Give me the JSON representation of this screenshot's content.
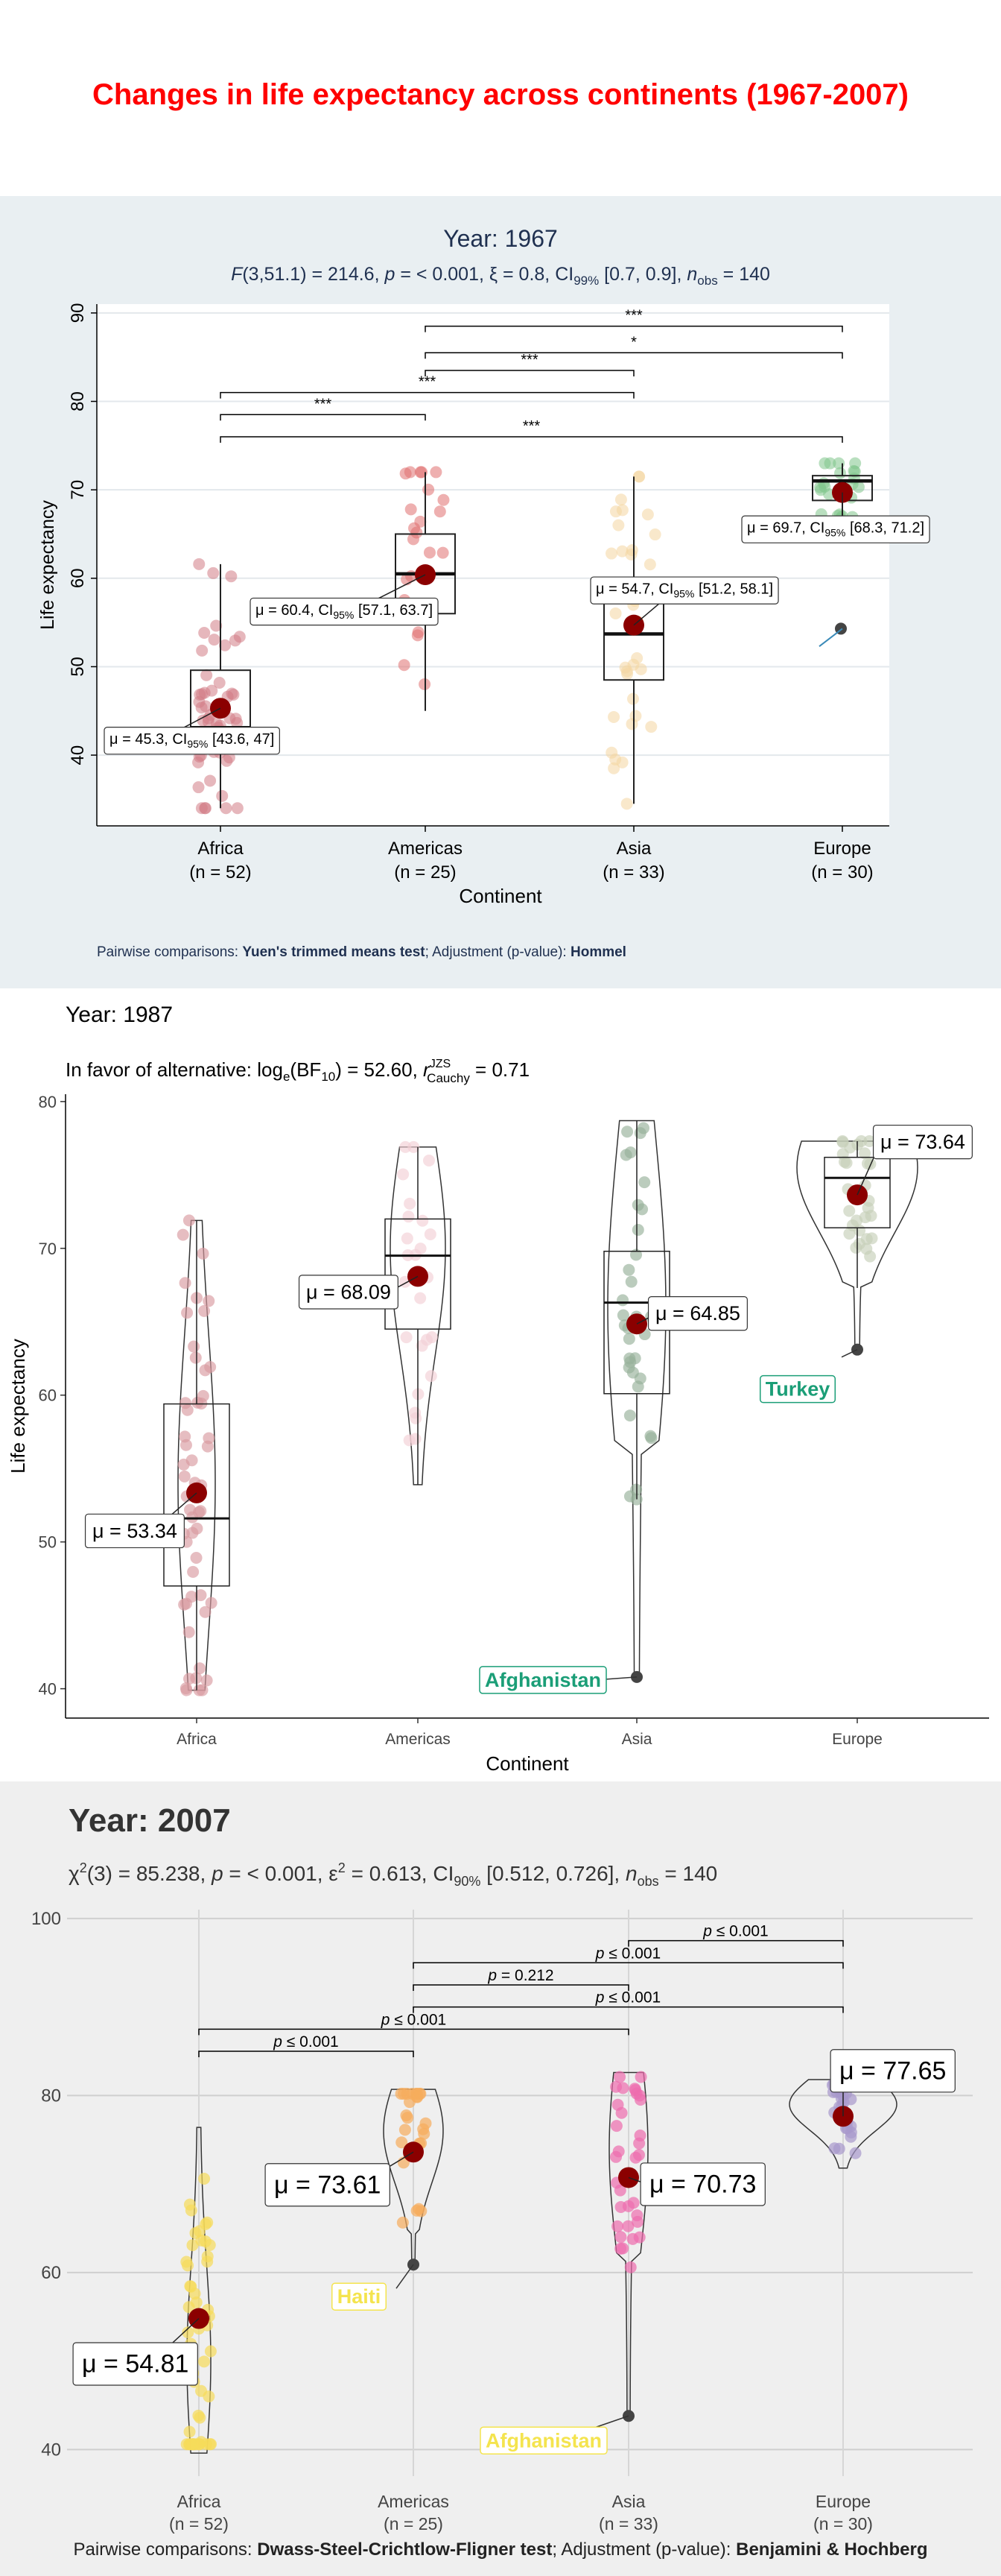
{
  "main_title": "Changes in life expectancy across continents (1967-2007)",
  "colors": {
    "title": "#ff0000",
    "panel1_bg": "#e9eff2",
    "panel3_bg": "#efefef",
    "mean_point": "#8b0000",
    "outlier_label": "#1b9e77",
    "outlier_label_2007": "#f4e44e",
    "africa_1967": "#d17c85",
    "americas_1967": "#e07070",
    "asia_1967": "#f4d6a0",
    "europe_1967": "#7fc58a",
    "africa_1987": "#d99aa0",
    "americas_1987": "#f2cfd6",
    "asia_1987": "#97b19a",
    "europe_1987": "#c6cfb9",
    "africa_2007": "#f6dc5a",
    "americas_2007": "#f6ac5c",
    "asia_2007": "#ee6cae",
    "europe_2007": "#a899cc"
  },
  "panels": [
    {
      "title": "Year: 1967",
      "subtitle": "F(3,51.1) = 214.6, p = < 0.001, ξ = 0.8, CI99% [0.7, 0.9], nobs = 140",
      "caption": "Pairwise comparisons: Yuen's trimmed means test; Adjustment (p-value): Hommel",
      "caption_parts": {
        "pre": "Pairwise comparisons: ",
        "test": "Yuen's trimmed means test",
        "mid": "; Adjustment (p-value): ",
        "adj": "Hommel"
      },
      "ylabel": "Life expectancy",
      "xlabel": "Continent",
      "ylim": [
        32,
        91
      ],
      "yticks": [
        40,
        50,
        60,
        70,
        80,
        90
      ],
      "groups": [
        {
          "name": "Africa",
          "n_label": "(n = 52)",
          "q1": 41.4,
          "median": 43.1,
          "q3": 49.6,
          "whisker_low": 34,
          "whisker_high": 61.6,
          "mean": 45.3,
          "mean_label": "μ = 45.3, CI95% [43.6, 47]"
        },
        {
          "name": "Americas",
          "n_label": "(n = 25)",
          "q1": 56,
          "median": 60.5,
          "q3": 65,
          "whisker_low": 45,
          "whisker_high": 72,
          "mean": 60.4,
          "mean_label": "μ = 60.4, CI95% [57.1, 63.7]"
        },
        {
          "name": "Asia",
          "n_label": "(n = 33)",
          "q1": 48.5,
          "median": 53.7,
          "q3": 60,
          "whisker_low": 34.5,
          "whisker_high": 71.5,
          "mean": 54.7,
          "mean_label": "μ = 54.7, CI95% [51.2, 58.1]"
        },
        {
          "name": "Europe",
          "n_label": "(n = 30)",
          "q1": 68.8,
          "median": 71,
          "q3": 71.6,
          "whisker_low": 65.5,
          "whisker_high": 73,
          "mean": 69.7,
          "mean_label": "μ = 69.7, CI95% [68.3, 71.2]",
          "outlier": 54.3
        }
      ],
      "comparisons": [
        {
          "from": 2,
          "to": 4,
          "y": 88.5,
          "label": "***"
        },
        {
          "from": 2,
          "to": 4,
          "y": 85.5,
          "label": "*"
        },
        {
          "from": 2,
          "to": 3,
          "y": 83.5,
          "label": "***"
        },
        {
          "from": 1,
          "to": 3,
          "y": 81,
          "label": "***"
        },
        {
          "from": 1,
          "to": 2,
          "y": 78.5,
          "label": "***"
        },
        {
          "from": 1,
          "to": 4,
          "y": 76,
          "label": "***"
        }
      ]
    },
    {
      "title": "Year: 1987",
      "subtitle": "In favor of alternative: loge(BF10) = 52.60, rJZS Cauchy = 0.71",
      "ylabel": "Life expectancy",
      "xlabel": "Continent",
      "ylim": [
        38,
        80.5
      ],
      "yticks": [
        40,
        50,
        60,
        70,
        80
      ],
      "groups": [
        {
          "name": "Africa",
          "q1": 47,
          "median": 51.6,
          "q3": 59.4,
          "whisker_low": 39.9,
          "whisker_high": 71.9,
          "mean": 53.34,
          "mean_label": "μ = 53.34"
        },
        {
          "name": "Americas",
          "q1": 64.5,
          "median": 69.5,
          "q3": 72,
          "whisker_low": 53.9,
          "whisker_high": 76.9,
          "mean": 68.09,
          "mean_label": "μ = 68.09"
        },
        {
          "name": "Asia",
          "q1": 60.1,
          "median": 66.3,
          "q3": 69.8,
          "whisker_low": 52.9,
          "whisker_high": 78.7,
          "mean": 64.85,
          "mean_label": "μ = 64.85",
          "outlier": 40.8,
          "outlier_label": "Afghanistan"
        },
        {
          "name": "Europe",
          "q1": 71.4,
          "median": 74.8,
          "q3": 76.2,
          "whisker_low": 67.3,
          "whisker_high": 77.3,
          "mean": 73.64,
          "mean_label": "μ = 73.64",
          "outlier": 63.1,
          "outlier_label": "Turkey"
        }
      ]
    },
    {
      "title": "Year: 2007",
      "subtitle": "χ2(3) = 85.238, p = < 0.001, ε2 = 0.613, CI90% [0.512, 0.726], nobs = 140",
      "caption": "Pairwise comparisons: Dwass-Steel-Crichtlow-Fligner test; Adjustment (p-value): Benjamini & Hochberg",
      "caption_parts": {
        "pre": "Pairwise comparisons: ",
        "test": "Dwass-Steel-Crichtlow-Fligner test",
        "mid": "; Adjustment (p-value): ",
        "adj": "Benjamini & Hochberg"
      },
      "ylabel": "",
      "xlabel": "",
      "ylim": [
        37,
        101
      ],
      "yticks": [
        40,
        60,
        80,
        100
      ],
      "groups": [
        {
          "name": "Africa",
          "n_label": "(n = 52)",
          "mean": 54.81,
          "mean_label": "μ = 54.81",
          "min": 39.6,
          "max": 76.4
        },
        {
          "name": "Americas",
          "n_label": "(n = 25)",
          "mean": 73.61,
          "mean_label": "μ = 73.61",
          "min": 60.9,
          "max": 80.7,
          "outlier": 60.9,
          "outlier_label": "Haiti"
        },
        {
          "name": "Asia",
          "n_label": "(n = 33)",
          "mean": 70.73,
          "mean_label": "μ = 70.73",
          "min": 43.8,
          "max": 82.6,
          "outlier": 43.8,
          "outlier_label": "Afghanistan"
        },
        {
          "name": "Europe",
          "n_label": "(n = 30)",
          "mean": 77.65,
          "mean_label": "μ = 77.65",
          "min": 71.8,
          "max": 81.8
        }
      ],
      "comparisons": [
        {
          "from": 3,
          "to": 4,
          "y": 97.5,
          "label": "p ≤ 0.001"
        },
        {
          "from": 2,
          "to": 4,
          "y": 95,
          "label": "p ≤ 0.001"
        },
        {
          "from": 2,
          "to": 3,
          "y": 92.5,
          "label": "p = 0.212"
        },
        {
          "from": 2,
          "to": 4,
          "y": 90,
          "label": "p ≤ 0.001"
        },
        {
          "from": 1,
          "to": 3,
          "y": 87.5,
          "label": "p ≤ 0.001"
        },
        {
          "from": 1,
          "to": 2,
          "y": 85,
          "label": "p ≤ 0.001"
        }
      ]
    }
  ],
  "chart_data": [
    {
      "type": "box",
      "title": "Year: 1967",
      "xlabel": "Continent",
      "ylabel": "Life expectancy",
      "categories": [
        "Africa",
        "Americas",
        "Asia",
        "Europe"
      ],
      "means": [
        45.3,
        60.4,
        54.7,
        69.7
      ],
      "medians": [
        43.1,
        60.5,
        53.7,
        71.0
      ],
      "ylim": [
        32,
        91
      ]
    },
    {
      "type": "violin",
      "title": "Year: 1987",
      "xlabel": "Continent",
      "ylabel": "Life expectancy",
      "categories": [
        "Africa",
        "Americas",
        "Asia",
        "Europe"
      ],
      "means": [
        53.34,
        68.09,
        64.85,
        73.64
      ],
      "medians": [
        51.6,
        69.5,
        66.3,
        74.8
      ],
      "ylim": [
        38,
        80.5
      ]
    },
    {
      "type": "violin",
      "title": "Year: 2007",
      "categories": [
        "Africa",
        "Americas",
        "Asia",
        "Europe"
      ],
      "means": [
        54.81,
        73.61,
        70.73,
        77.65
      ],
      "ylim": [
        37,
        101
      ]
    }
  ]
}
